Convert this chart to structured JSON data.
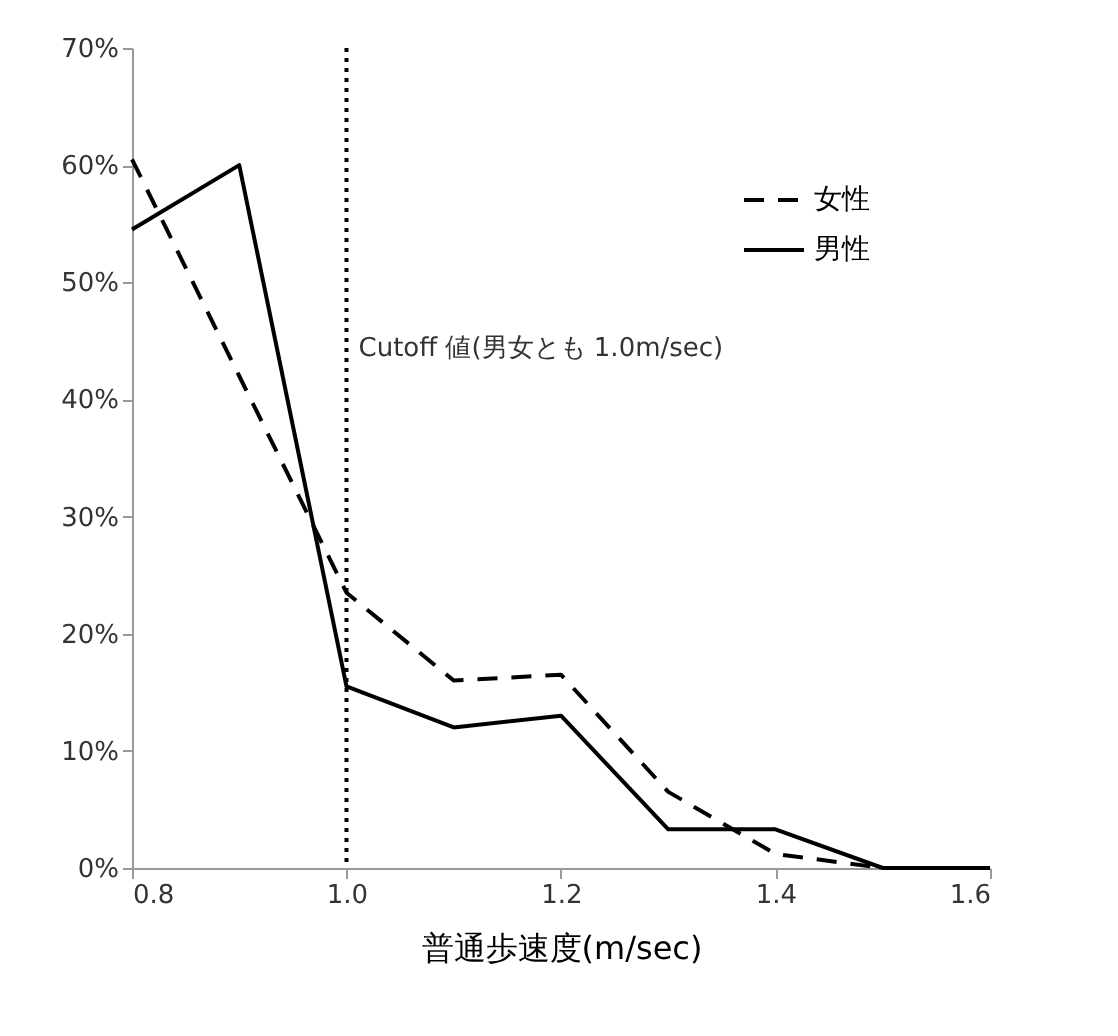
{
  "chart_data": {
    "type": "line",
    "xlabel": "普通歩速度(m/sec)",
    "x": [
      0.8,
      0.9,
      1.0,
      1.1,
      1.2,
      1.3,
      1.4,
      1.5,
      1.6
    ],
    "series": [
      {
        "name": "女性",
        "color": "#000000",
        "line_style": "dashed",
        "values": [
          60.5,
          42,
          23.5,
          16,
          16.5,
          6.5,
          1.2,
          0,
          0
        ]
      },
      {
        "name": "男性",
        "color": "#000000",
        "line_style": "solid",
        "values": [
          54.5,
          60,
          15.5,
          12,
          13,
          3.3,
          3.3,
          0,
          0
        ]
      }
    ],
    "xlim": [
      0.8,
      1.6
    ],
    "xticks": [
      {
        "value": 0.8,
        "label": "0.8"
      },
      {
        "value": 1,
        "label": "1.0"
      },
      {
        "value": 1.2,
        "label": "1.2"
      },
      {
        "value": 1.4,
        "label": "1.4"
      },
      {
        "value": 1.6,
        "label": "1.6"
      }
    ],
    "ylim": [
      0,
      70
    ],
    "yticks": [
      {
        "value": 0,
        "label": "0%"
      },
      {
        "value": 10,
        "label": "10%"
      },
      {
        "value": 20,
        "label": "20%"
      },
      {
        "value": 30,
        "label": "30%"
      },
      {
        "value": 40,
        "label": "40%"
      },
      {
        "value": 50,
        "label": "50%"
      },
      {
        "value": 60,
        "label": "60%"
      },
      {
        "value": 70,
        "label": "70%"
      }
    ],
    "ref_lines": [
      {
        "axis": "x",
        "value": 1.0,
        "label": "Cutoff 値(男女とも 1.0m/sec)",
        "line_style": "dotted",
        "color": "#000000"
      }
    ],
    "grid": false,
    "legend": "top right"
  }
}
